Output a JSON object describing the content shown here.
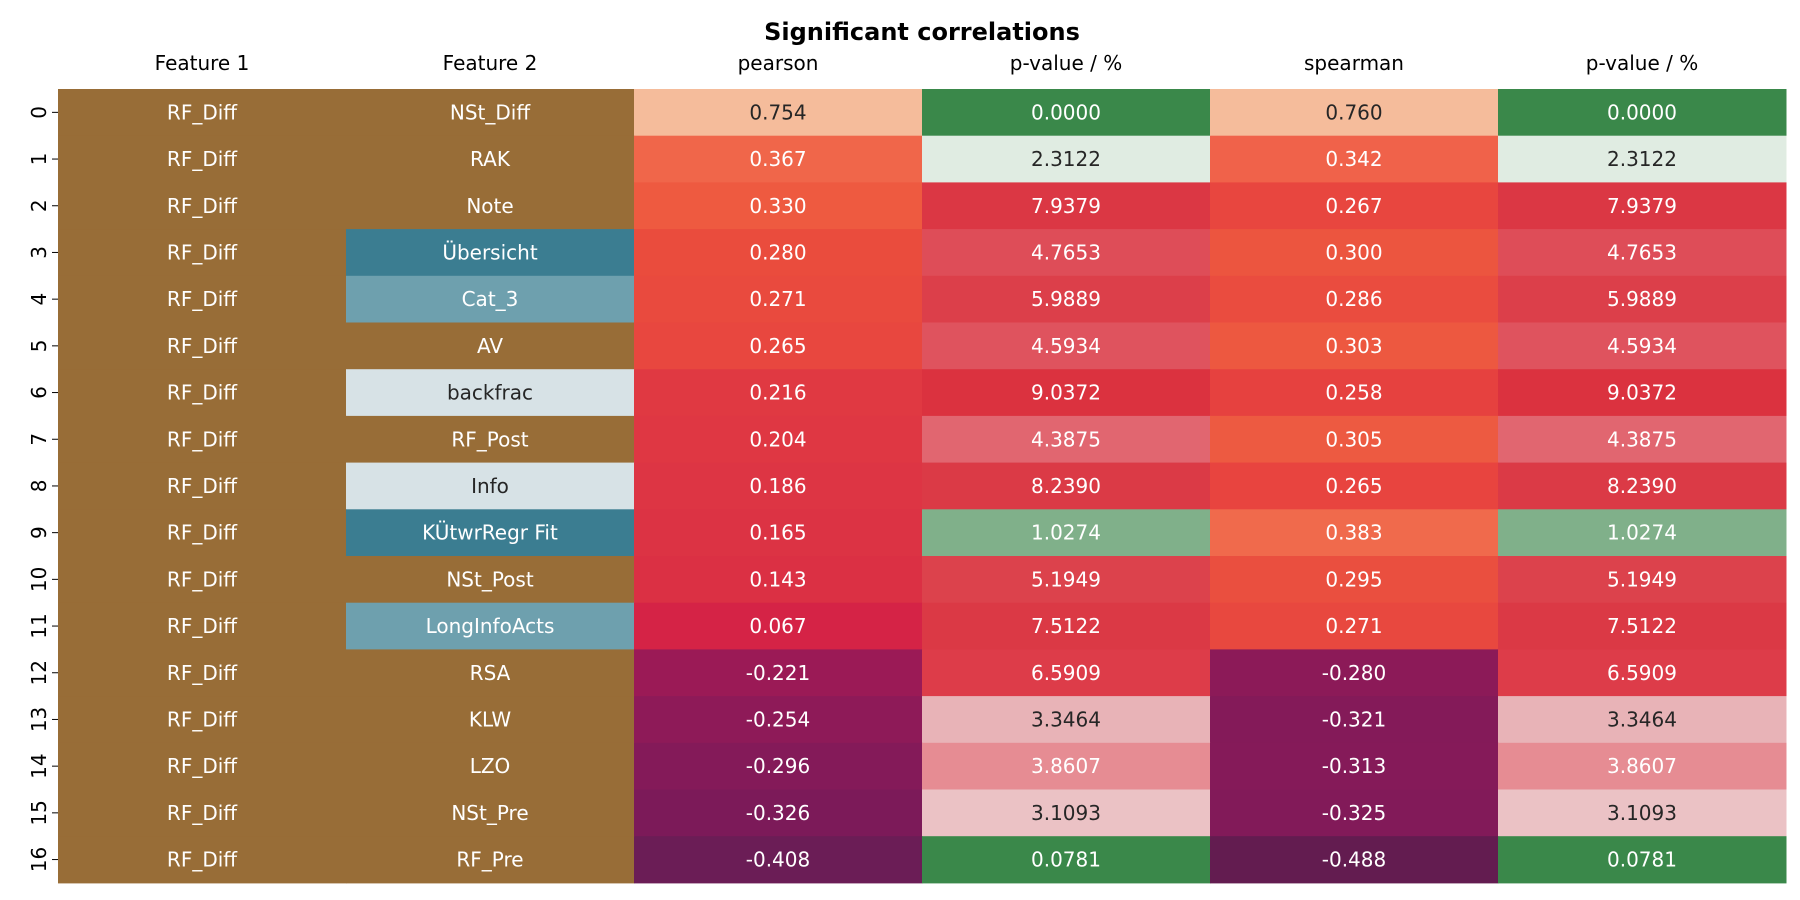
{
  "chart_data": {
    "type": "table",
    "title": "Significant correlations",
    "columns": [
      "Feature 1",
      "Feature 2",
      "pearson",
      "p-value / %",
      "spearman",
      "p-value / %"
    ],
    "row_labels": [
      "0",
      "1",
      "2",
      "3",
      "4",
      "5",
      "6",
      "7",
      "8",
      "9",
      "10",
      "11",
      "12",
      "13",
      "14",
      "15",
      "16"
    ],
    "feature1": [
      "RF_Diff",
      "RF_Diff",
      "RF_Diff",
      "RF_Diff",
      "RF_Diff",
      "RF_Diff",
      "RF_Diff",
      "RF_Diff",
      "RF_Diff",
      "RF_Diff",
      "RF_Diff",
      "RF_Diff",
      "RF_Diff",
      "RF_Diff",
      "RF_Diff",
      "RF_Diff",
      "RF_Diff"
    ],
    "feature2": [
      "NSt_Diff",
      "RAK",
      "Note",
      "Übersicht",
      "Cat_3",
      "AV",
      "backfrac",
      "RF_Post",
      "Info",
      "KÜtwrRegr Fit",
      "NSt_Post",
      "LongInfoActs",
      "RSA",
      "KLW",
      "LZO",
      "NSt_Pre",
      "RF_Pre"
    ],
    "pearson": [
      "0.754",
      "0.367",
      "0.330",
      "0.280",
      "0.271",
      "0.265",
      "0.216",
      "0.204",
      "0.186",
      "0.165",
      "0.143",
      "0.067",
      "-0.221",
      "-0.254",
      "-0.296",
      "-0.326",
      "-0.408"
    ],
    "pearson_pvalue": [
      "0.0000",
      "2.3122",
      "7.9379",
      "4.7653",
      "5.9889",
      "4.5934",
      "9.0372",
      "4.3875",
      "8.2390",
      "1.0274",
      "5.1949",
      "7.5122",
      "6.5909",
      "3.3464",
      "3.8607",
      "3.1093",
      "0.0781"
    ],
    "spearman": [
      "0.760",
      "0.342",
      "0.267",
      "0.300",
      "0.286",
      "0.303",
      "0.258",
      "0.305",
      "0.265",
      "0.383",
      "0.295",
      "0.271",
      "-0.280",
      "-0.321",
      "-0.313",
      "-0.325",
      "-0.488"
    ],
    "spearman_pvalue": [
      "0.0000",
      "2.3122",
      "7.9379",
      "4.7653",
      "5.9889",
      "4.5934",
      "9.0372",
      "4.3875",
      "8.2390",
      "1.0274",
      "5.1949",
      "7.5122",
      "6.5909",
      "3.3464",
      "3.8607",
      "3.1093",
      "0.0781"
    ],
    "colors": {
      "feature1": [
        "#986d37",
        "#986d37",
        "#986d37",
        "#986d37",
        "#986d37",
        "#986d37",
        "#986d37",
        "#986d37",
        "#986d37",
        "#986d37",
        "#986d37",
        "#986d37",
        "#986d37",
        "#986d37",
        "#986d37",
        "#986d37",
        "#986d37"
      ],
      "feature2": [
        "#986d37",
        "#986d37",
        "#986d37",
        "#3b7d91",
        "#6ea0ae",
        "#986d37",
        "#d7e2e6",
        "#986d37",
        "#d7e2e6",
        "#3b7d91",
        "#986d37",
        "#6ea0ae",
        "#986d37",
        "#986d37",
        "#986d37",
        "#986d37",
        "#986d37"
      ],
      "pearson": [
        "#f5bc9b",
        "#f0664a",
        "#ee5a40",
        "#ea4c3d",
        "#e94a3e",
        "#e8473f",
        "#e03942",
        "#df3743",
        "#dd3544",
        "#dc3344",
        "#db3044",
        "#d52346",
        "#9b1a56",
        "#8e1a58",
        "#841a59",
        "#7c1a59",
        "#6b1d56"
      ],
      "pearson_pvalue": [
        "#3a884a",
        "#e0ece2",
        "#db3744",
        "#de4d58",
        "#dc3f4a",
        "#df535e",
        "#db323f",
        "#e16670",
        "#db3a46",
        "#80b08a",
        "#dc424c",
        "#db3945",
        "#dd3c49",
        "#e8b3b7",
        "#e68c93",
        "#ebc2c5",
        "#3a884a"
      ],
      "spearman": [
        "#f5bc9b",
        "#f0624a",
        "#e8463f",
        "#ec553f",
        "#ea4c3f",
        "#ed5840",
        "#e6413f",
        "#ed5a41",
        "#e8443f",
        "#f06a4c",
        "#ea4f3f",
        "#e8483f",
        "#8c1a58",
        "#841a59",
        "#851a59",
        "#821a59",
        "#631c50"
      ],
      "spearman_pvalue": [
        "#3a884a",
        "#e0ece2",
        "#db3744",
        "#de4d58",
        "#dc3f4a",
        "#df535e",
        "#db323f",
        "#e16670",
        "#db3a46",
        "#80b08a",
        "#dc424c",
        "#db3945",
        "#dd3c49",
        "#e8b3b7",
        "#e68c93",
        "#ebc2c5",
        "#3a884a"
      ],
      "dark_text_rows": {
        "feature2": [
          6,
          8
        ],
        "pearson": [
          0
        ],
        "pearson_pvalue": [
          1,
          13,
          15
        ],
        "spearman": [
          0
        ],
        "spearman_pvalue": [
          1,
          13,
          15
        ]
      }
    }
  }
}
